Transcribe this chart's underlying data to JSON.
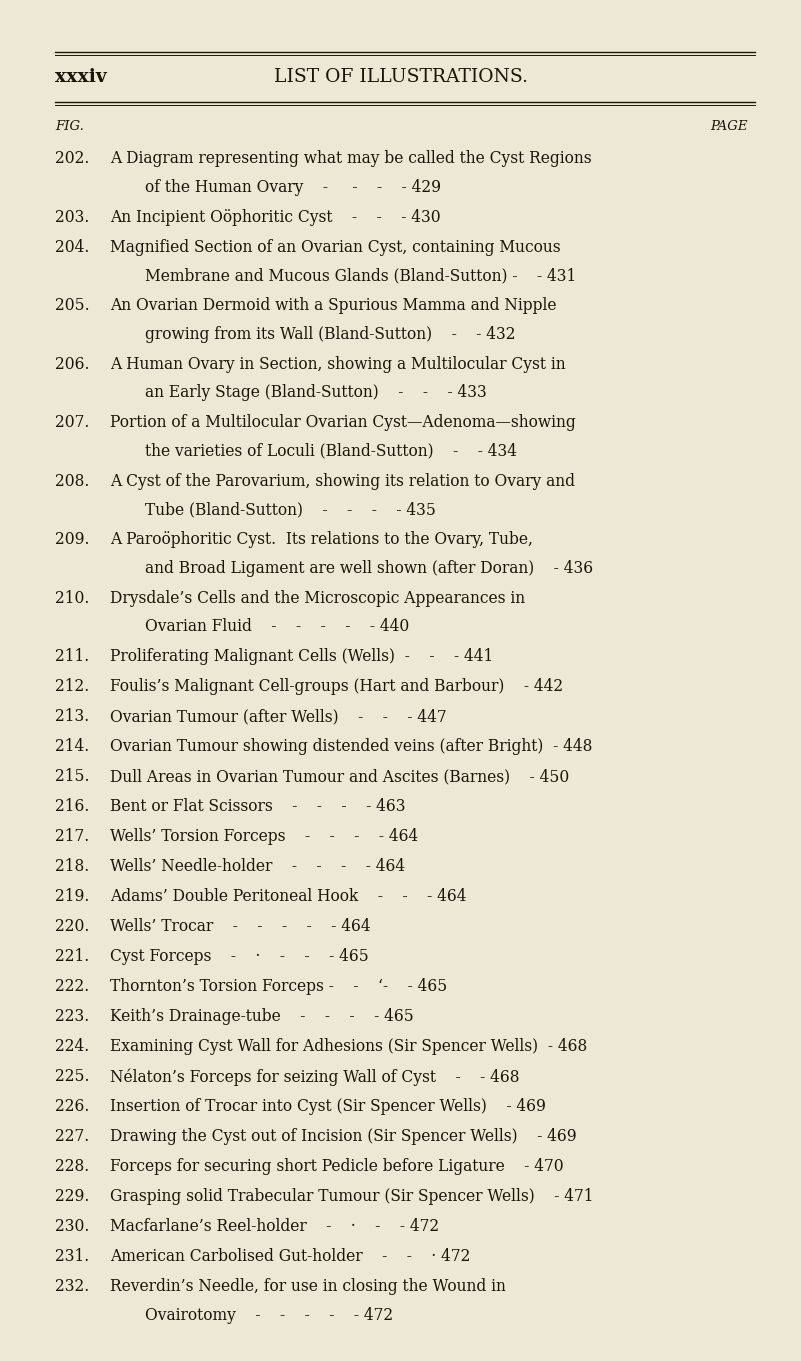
{
  "bg_color": "#ede8d5",
  "text_color": "#1a1508",
  "page_header_left": "xxxiv",
  "page_header_center": "LIST OF ILLUSTRATIONS.",
  "col_header_left": "FIG.",
  "col_header_right": "PAGE",
  "entries": [
    {
      "fig": "202.",
      "line1": "A Diagram representing what may be called the Cyst Regions",
      "line2": "of the Human Ovary    -     -    -    - 429",
      "page": null
    },
    {
      "fig": "203.",
      "line1": "An Incipient Oöphoritic Cyst    -    -    - 430",
      "line2": null,
      "page": null
    },
    {
      "fig": "204.",
      "line1": "Magnified Section of an Ovarian Cyst, containing Mucous",
      "line2": "Membrane and Mucous Glands (Bland-Sutton) -    - 431",
      "page": null
    },
    {
      "fig": "205.",
      "line1": "An Ovarian Dermoid with a Spurious Mamma and Nipple",
      "line2": "growing from its Wall (Bland-Sutton)    -    - 432",
      "page": null
    },
    {
      "fig": "206.",
      "line1": "A Human Ovary in Section, showing a Multilocular Cyst in",
      "line2": "an Early Stage (Bland-Sutton)    -    -    - 433",
      "page": null
    },
    {
      "fig": "207.",
      "line1": "Portion of a Multilocular Ovarian Cyst—Adenoma—showing",
      "line2": "the varieties of Loculi (Bland-Sutton)    -    - 434",
      "page": null
    },
    {
      "fig": "208.",
      "line1": "A Cyst of the Parovarium, showing its relation to Ovary and",
      "line2": "Tube (Bland-Sutton)    -    -    -    - 435",
      "page": null
    },
    {
      "fig": "209.",
      "line1": "A Paroöphoritic Cyst.  Its relations to the Ovary, Tube,",
      "line2": "and Broad Ligament are well shown (after Doran)    - 436",
      "page": null
    },
    {
      "fig": "210.",
      "line1": "Drysdale’s Cells and the Microscopic Appearances in",
      "line2": "Ovarian Fluid    -    -    -    -    - 440",
      "page": null
    },
    {
      "fig": "211.",
      "line1": "Proliferating Malignant Cells (Wells)  -    -    - 441",
      "line2": null,
      "page": null
    },
    {
      "fig": "212.",
      "line1": "Foulis’s Malignant Cell-groups (Hart and Barbour)    - 442",
      "line2": null,
      "page": null
    },
    {
      "fig": "213.",
      "line1": "Ovarian Tumour (after Wells)    -    -    - 447",
      "line2": null,
      "page": null
    },
    {
      "fig": "214.",
      "line1": "Ovarian Tumour showing distended veins (after Bright)  - 448",
      "line2": null,
      "page": null
    },
    {
      "fig": "215.",
      "line1": "Dull Areas in Ovarian Tumour and Ascites (Barnes)    - 450",
      "line2": null,
      "page": null
    },
    {
      "fig": "216.",
      "line1": "Bent or Flat Scissors    -    -    -    - 463",
      "line2": null,
      "page": null
    },
    {
      "fig": "217.",
      "line1": "Wells’ Torsion Forceps    -    -    -    - 464",
      "line2": null,
      "page": null
    },
    {
      "fig": "218.",
      "line1": "Wells’ Needle-holder    -    -    -    - 464",
      "line2": null,
      "page": null
    },
    {
      "fig": "219.",
      "line1": "Adams’ Double Peritoneal Hook    -    -    - 464",
      "line2": null,
      "page": null
    },
    {
      "fig": "220.",
      "line1": "Wells’ Trocar    -    -    -    -    - 464",
      "line2": null,
      "page": null
    },
    {
      "fig": "221.",
      "line1": "Cyst Forceps    -    ·    -    -    - 465",
      "line2": null,
      "page": null
    },
    {
      "fig": "222.",
      "line1": "Thornton’s Torsion Forceps -    -    ‘-    - 465",
      "line2": null,
      "page": null
    },
    {
      "fig": "223.",
      "line1": "Keith’s Drainage-tube    -    -    -    - 465",
      "line2": null,
      "page": null
    },
    {
      "fig": "224.",
      "line1": "Examining Cyst Wall for Adhesions (Sir Spencer Wells)  - 468",
      "line2": null,
      "page": null
    },
    {
      "fig": "225.",
      "line1": "Nélaton’s Forceps for seizing Wall of Cyst    -    - 468",
      "line2": null,
      "page": null
    },
    {
      "fig": "226.",
      "line1": "Insertion of Trocar into Cyst (Sir Spencer Wells)    - 469",
      "line2": null,
      "page": null
    },
    {
      "fig": "227.",
      "line1": "Drawing the Cyst out of Incision (Sir Spencer Wells)    - 469",
      "line2": null,
      "page": null
    },
    {
      "fig": "228.",
      "line1": "Forceps for securing short Pedicle before Ligature    - 470",
      "line2": null,
      "page": null
    },
    {
      "fig": "229.",
      "line1": "Grasping solid Trabecular Tumour (Sir Spencer Wells)    - 471",
      "line2": null,
      "page": null
    },
    {
      "fig": "230.",
      "line1": "Macfarlane’s Reel-holder    -    ·    -    - 472",
      "line2": null,
      "page": null
    },
    {
      "fig": "231.",
      "line1": "American Carbolised Gut-holder    -    -    · 472",
      "line2": null,
      "page": null
    },
    {
      "fig": "232.",
      "line1": "Reverdin’s Needle, for use in closing the Wound in",
      "line2": "Ovairotomy    -    -    -    -    - 472",
      "page": null
    }
  ]
}
